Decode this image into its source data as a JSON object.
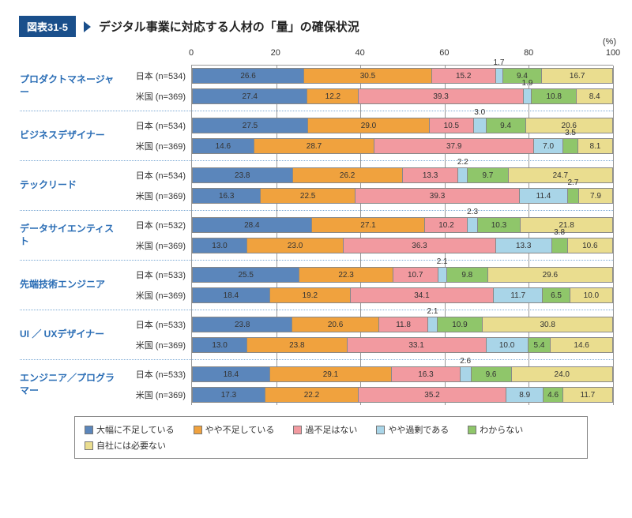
{
  "figure_label": "図表31-5",
  "title": "デジタル事業に対応する人材の「量」の確保状況",
  "axis": {
    "unit": "(%)",
    "min": 0,
    "max": 100,
    "ticks": [
      0,
      20,
      40,
      60,
      80,
      100
    ]
  },
  "colors": {
    "severe_shortage": "#5b86bb",
    "slight_shortage": "#f0a23e",
    "adequate": "#f29aa0",
    "slight_surplus": "#a9d5e8",
    "unknown": "#8fc66a",
    "not_needed": "#eadd8f",
    "group_label": "#2a6db5",
    "badge_bg": "#1a4f8b",
    "border": "#888888",
    "dotted": "#7aa8d4"
  },
  "series": [
    {
      "key": "severe_shortage",
      "label": "大幅に不足している"
    },
    {
      "key": "slight_shortage",
      "label": "やや不足している"
    },
    {
      "key": "adequate",
      "label": "過不足はない"
    },
    {
      "key": "slight_surplus",
      "label": "やや過剰である"
    },
    {
      "key": "unknown",
      "label": "わからない"
    },
    {
      "key": "not_needed",
      "label": "自社には必要ない"
    }
  ],
  "groups": [
    {
      "name": "プロダクトマネージャー",
      "rows": [
        {
          "label": "日本 (n=534)",
          "values": [
            26.6,
            30.5,
            15.2,
            1.7,
            9.4,
            16.7
          ]
        },
        {
          "label": "米国 (n=369)",
          "values": [
            27.4,
            12.2,
            39.3,
            1.9,
            10.8,
            8.4
          ]
        }
      ]
    },
    {
      "name": "ビジネスデザイナー",
      "rows": [
        {
          "label": "日本 (n=534)",
          "values": [
            27.5,
            29.0,
            10.5,
            3.0,
            9.4,
            20.6
          ]
        },
        {
          "label": "米国 (n=369)",
          "values": [
            14.6,
            28.7,
            37.9,
            7.0,
            3.5,
            8.1
          ]
        }
      ]
    },
    {
      "name": "テックリード",
      "rows": [
        {
          "label": "日本 (n=534)",
          "values": [
            23.8,
            26.2,
            13.3,
            2.2,
            9.7,
            24.7
          ]
        },
        {
          "label": "米国 (n=369)",
          "values": [
            16.3,
            22.5,
            39.3,
            11.4,
            2.7,
            7.9
          ]
        }
      ]
    },
    {
      "name": "データサイエンティスト",
      "rows": [
        {
          "label": "日本 (n=532)",
          "values": [
            28.4,
            27.1,
            10.2,
            2.3,
            10.3,
            21.8
          ]
        },
        {
          "label": "米国 (n=369)",
          "values": [
            13.0,
            23.0,
            36.3,
            13.3,
            3.8,
            10.6
          ]
        }
      ]
    },
    {
      "name": "先端技術エンジニア",
      "rows": [
        {
          "label": "日本 (n=533)",
          "values": [
            25.5,
            22.3,
            10.7,
            2.1,
            9.8,
            29.6
          ]
        },
        {
          "label": "米国 (n=369)",
          "values": [
            18.4,
            19.2,
            34.1,
            11.7,
            6.5,
            10.0
          ]
        }
      ]
    },
    {
      "name": "UI ／ UXデザイナー",
      "rows": [
        {
          "label": "日本 (n=533)",
          "values": [
            23.8,
            20.6,
            11.8,
            2.1,
            10.9,
            30.8
          ]
        },
        {
          "label": "米国 (n=369)",
          "values": [
            13.0,
            23.8,
            33.1,
            10.0,
            5.4,
            14.6
          ]
        }
      ]
    },
    {
      "name": "エンジニア／プログラマー",
      "rows": [
        {
          "label": "日本 (n=533)",
          "values": [
            18.4,
            29.1,
            16.3,
            2.6,
            9.6,
            24.0
          ]
        },
        {
          "label": "米国 (n=369)",
          "values": [
            17.3,
            22.2,
            35.2,
            8.9,
            4.6,
            11.7
          ]
        }
      ]
    }
  ],
  "tiny_threshold": 4.0
}
